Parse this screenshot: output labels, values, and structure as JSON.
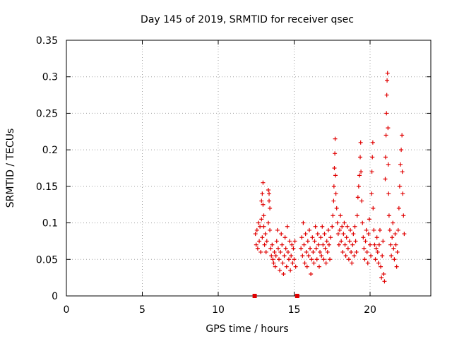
{
  "chart_data": {
    "type": "scatter",
    "title": "Day 145 of 2019, SRMTID for receiver qsec",
    "xlabel": "GPS time / hours",
    "ylabel": "SRMTID / TECUs",
    "xlim": [
      0,
      24
    ],
    "ylim": [
      0,
      0.35
    ],
    "xticks": [
      0,
      5,
      10,
      15,
      20
    ],
    "xtick_labels": [
      "0",
      "5",
      "10",
      "15",
      "20"
    ],
    "yticks": [
      0,
      0.05,
      0.1,
      0.15,
      0.2,
      0.25,
      0.3,
      0.35
    ],
    "ytick_labels": [
      "0",
      "0.05",
      "0.1",
      "0.15",
      "0.2",
      "0.25",
      "0.3",
      "0.35"
    ],
    "grid": true,
    "marker": "+",
    "marker_color": "#e00000",
    "axis_markers": [
      {
        "x": 12.4,
        "y": 0
      },
      {
        "x": 15.2,
        "y": 0
      }
    ],
    "series": [
      {
        "name": "SRMTID",
        "points": [
          [
            12.45,
            0.085
          ],
          [
            12.5,
            0.07
          ],
          [
            12.55,
            0.09
          ],
          [
            12.6,
            0.065
          ],
          [
            12.65,
            0.1
          ],
          [
            12.7,
            0.075
          ],
          [
            12.75,
            0.095
          ],
          [
            12.8,
            0.06
          ],
          [
            12.85,
            0.105
          ],
          [
            12.9,
            0.08
          ],
          [
            12.95,
            0.155
          ],
          [
            12.9,
            0.14
          ],
          [
            12.95,
            0.125
          ],
          [
            13.0,
            0.11
          ],
          [
            12.85,
            0.13
          ],
          [
            13.0,
            0.095
          ],
          [
            13.05,
            0.07
          ],
          [
            13.1,
            0.085
          ],
          [
            13.15,
            0.06
          ],
          [
            13.2,
            0.075
          ],
          [
            13.3,
            0.145
          ],
          [
            13.35,
            0.13
          ],
          [
            13.4,
            0.12
          ],
          [
            13.35,
            0.14
          ],
          [
            13.3,
            0.1
          ],
          [
            13.4,
            0.09
          ],
          [
            13.45,
            0.065
          ],
          [
            13.5,
            0.055
          ],
          [
            13.55,
            0.07
          ],
          [
            13.6,
            0.05
          ],
          [
            13.65,
            0.045
          ],
          [
            13.7,
            0.06
          ],
          [
            13.75,
            0.04
          ],
          [
            13.8,
            0.055
          ],
          [
            13.85,
            0.075
          ],
          [
            13.9,
            0.09
          ],
          [
            13.95,
            0.065
          ],
          [
            14.0,
            0.05
          ],
          [
            14.05,
            0.035
          ],
          [
            14.1,
            0.06
          ],
          [
            14.15,
            0.085
          ],
          [
            14.2,
            0.07
          ],
          [
            14.25,
            0.045
          ],
          [
            14.3,
            0.03
          ],
          [
            14.35,
            0.055
          ],
          [
            14.4,
            0.08
          ],
          [
            14.45,
            0.065
          ],
          [
            14.5,
            0.04
          ],
          [
            14.55,
            0.095
          ],
          [
            14.6,
            0.06
          ],
          [
            14.65,
            0.05
          ],
          [
            14.7,
            0.075
          ],
          [
            14.75,
            0.035
          ],
          [
            14.8,
            0.055
          ],
          [
            14.85,
            0.07
          ],
          [
            14.9,
            0.045
          ],
          [
            14.95,
            0.065
          ],
          [
            15.0,
            0.05
          ],
          [
            15.05,
            0.075
          ],
          [
            15.1,
            0.04
          ],
          [
            15.45,
            0.065
          ],
          [
            15.5,
            0.08
          ],
          [
            15.55,
            0.055
          ],
          [
            15.6,
            0.1
          ],
          [
            15.65,
            0.07
          ],
          [
            15.7,
            0.045
          ],
          [
            15.75,
            0.085
          ],
          [
            15.8,
            0.06
          ],
          [
            15.85,
            0.04
          ],
          [
            15.9,
            0.075
          ],
          [
            15.95,
            0.055
          ],
          [
            16.0,
            0.09
          ],
          [
            16.05,
            0.065
          ],
          [
            16.1,
            0.03
          ],
          [
            16.15,
            0.05
          ],
          [
            16.2,
            0.08
          ],
          [
            16.25,
            0.06
          ],
          [
            16.3,
            0.045
          ],
          [
            16.35,
            0.075
          ],
          [
            16.4,
            0.095
          ],
          [
            16.45,
            0.065
          ],
          [
            16.5,
            0.05
          ],
          [
            16.55,
            0.085
          ],
          [
            16.6,
            0.07
          ],
          [
            16.65,
            0.04
          ],
          [
            16.7,
            0.06
          ],
          [
            16.75,
            0.08
          ],
          [
            16.8,
            0.055
          ],
          [
            16.85,
            0.095
          ],
          [
            16.9,
            0.07
          ],
          [
            16.95,
            0.05
          ],
          [
            17.0,
            0.085
          ],
          [
            17.05,
            0.065
          ],
          [
            17.1,
            0.045
          ],
          [
            17.15,
            0.075
          ],
          [
            17.2,
            0.06
          ],
          [
            17.25,
            0.09
          ],
          [
            17.3,
            0.07
          ],
          [
            17.35,
            0.05
          ],
          [
            17.4,
            0.08
          ],
          [
            17.5,
            0.095
          ],
          [
            17.55,
            0.11
          ],
          [
            17.6,
            0.13
          ],
          [
            17.62,
            0.15
          ],
          [
            17.65,
            0.175
          ],
          [
            17.68,
            0.195
          ],
          [
            17.7,
            0.215
          ],
          [
            17.72,
            0.165
          ],
          [
            17.75,
            0.14
          ],
          [
            17.8,
            0.12
          ],
          [
            17.85,
            0.1
          ],
          [
            17.9,
            0.085
          ],
          [
            17.95,
            0.07
          ],
          [
            18.0,
            0.09
          ],
          [
            18.05,
            0.11
          ],
          [
            18.1,
            0.075
          ],
          [
            18.15,
            0.095
          ],
          [
            18.2,
            0.06
          ],
          [
            18.25,
            0.085
          ],
          [
            18.3,
            0.1
          ],
          [
            18.35,
            0.07
          ],
          [
            18.4,
            0.055
          ],
          [
            18.45,
            0.08
          ],
          [
            18.5,
            0.095
          ],
          [
            18.55,
            0.065
          ],
          [
            18.6,
            0.05
          ],
          [
            18.65,
            0.075
          ],
          [
            18.7,
            0.09
          ],
          [
            18.75,
            0.06
          ],
          [
            18.8,
            0.045
          ],
          [
            18.85,
            0.07
          ],
          [
            18.9,
            0.085
          ],
          [
            18.95,
            0.055
          ],
          [
            19.0,
            0.095
          ],
          [
            19.05,
            0.075
          ],
          [
            19.1,
            0.06
          ],
          [
            19.15,
            0.11
          ],
          [
            19.2,
            0.135
          ],
          [
            19.25,
            0.15
          ],
          [
            19.3,
            0.165
          ],
          [
            19.35,
            0.19
          ],
          [
            19.38,
            0.21
          ],
          [
            19.4,
            0.17
          ],
          [
            19.45,
            0.13
          ],
          [
            19.5,
            0.1
          ],
          [
            19.55,
            0.08
          ],
          [
            19.6,
            0.065
          ],
          [
            19.65,
            0.05
          ],
          [
            19.7,
            0.075
          ],
          [
            19.75,
            0.09
          ],
          [
            19.8,
            0.06
          ],
          [
            19.85,
            0.045
          ],
          [
            19.9,
            0.085
          ],
          [
            19.95,
            0.105
          ],
          [
            20.0,
            0.07
          ],
          [
            20.05,
            0.055
          ],
          [
            20.1,
            0.14
          ],
          [
            20.12,
            0.17
          ],
          [
            20.15,
            0.19
          ],
          [
            20.18,
            0.21
          ],
          [
            20.2,
            0.12
          ],
          [
            20.25,
            0.09
          ],
          [
            20.3,
            0.07
          ],
          [
            20.35,
            0.05
          ],
          [
            20.4,
            0.065
          ],
          [
            20.45,
            0.08
          ],
          [
            20.5,
            0.06
          ],
          [
            20.55,
            0.045
          ],
          [
            20.6,
            0.07
          ],
          [
            20.65,
            0.09
          ],
          [
            20.7,
            0.04
          ],
          [
            20.75,
            0.025
          ],
          [
            20.8,
            0.055
          ],
          [
            20.85,
            0.075
          ],
          [
            20.9,
            0.03
          ],
          [
            20.95,
            0.02
          ],
          [
            21.0,
            0.16
          ],
          [
            21.02,
            0.19
          ],
          [
            21.05,
            0.22
          ],
          [
            21.08,
            0.25
          ],
          [
            21.1,
            0.275
          ],
          [
            21.12,
            0.295
          ],
          [
            21.15,
            0.305
          ],
          [
            21.18,
            0.23
          ],
          [
            21.2,
            0.18
          ],
          [
            21.22,
            0.14
          ],
          [
            21.25,
            0.11
          ],
          [
            21.3,
            0.09
          ],
          [
            21.35,
            0.07
          ],
          [
            21.4,
            0.055
          ],
          [
            21.45,
            0.08
          ],
          [
            21.5,
            0.1
          ],
          [
            21.55,
            0.065
          ],
          [
            21.6,
            0.05
          ],
          [
            21.65,
            0.085
          ],
          [
            21.7,
            0.07
          ],
          [
            21.75,
            0.04
          ],
          [
            21.8,
            0.06
          ],
          [
            21.85,
            0.09
          ],
          [
            21.9,
            0.12
          ],
          [
            21.95,
            0.15
          ],
          [
            22.0,
            0.18
          ],
          [
            22.05,
            0.2
          ],
          [
            22.1,
            0.22
          ],
          [
            22.12,
            0.17
          ],
          [
            22.15,
            0.14
          ],
          [
            22.2,
            0.11
          ],
          [
            22.25,
            0.085
          ]
        ]
      }
    ]
  }
}
